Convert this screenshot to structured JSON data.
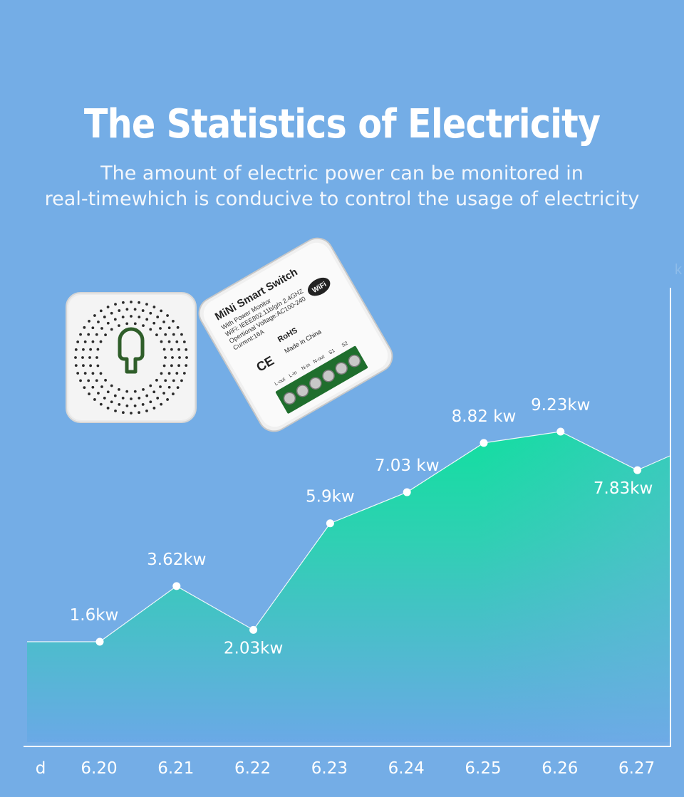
{
  "header": {
    "title": "The Statistics of Electricity",
    "subtitle_line1": "The amount of electric power can be monitored in",
    "subtitle_line2": "real-timewhich is conducive to control the usage of electricity"
  },
  "edge_fragment": "k",
  "product": {
    "name": "MiNi Smart Switch",
    "line1": "With Power Monitor",
    "line2": "WiFi: IEEE802.11b/g/n 2.4GHZ",
    "line3": "Opertional Voltage:AC100-240",
    "line4": "Current:16A",
    "rohs": "RoHS",
    "made_in": "Made in China",
    "ce": "CE",
    "wifi_badge": "WiFi",
    "terminals": [
      "L-out",
      "L-in",
      "N-in",
      "N-out",
      "S1",
      "S2"
    ]
  },
  "chart_data": {
    "type": "area",
    "x_prefix": "d",
    "categories": [
      "6.20",
      "6.21",
      "6.22",
      "6.23",
      "6.24",
      "6.25",
      "6.26",
      "6.27"
    ],
    "values": [
      1.6,
      3.62,
      2.03,
      5.9,
      7.03,
      8.82,
      9.23,
      7.83
    ],
    "labels": [
      "1.6kw",
      "3.62kw",
      "2.03kw",
      "5.9kw",
      "7.03 kw",
      "8.82 kw",
      "9.23kw",
      "7.83kw"
    ],
    "unit": "kw",
    "colors": {
      "fill_top": "#12dfa0",
      "fill_bottom": "#6aa9e6",
      "line": "#ffffff",
      "axis": "#ffffff"
    }
  }
}
